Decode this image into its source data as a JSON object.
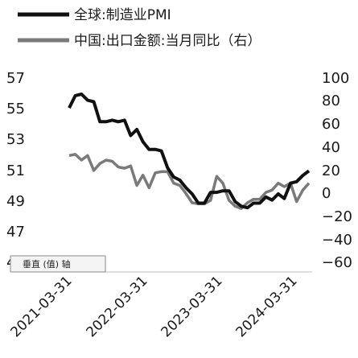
{
  "chart_data": {
    "type": "line",
    "legend": {
      "placement": "top-left"
    },
    "y_left": {
      "ticks": [
        "57",
        "55",
        "53",
        "51",
        "49",
        "47",
        "45"
      ],
      "lim": [
        45,
        57
      ]
    },
    "y_right": {
      "ticks": [
        "100",
        "80",
        "60",
        "40",
        "20",
        "0",
        "−20",
        "−40",
        "−60"
      ],
      "lim": [
        -60,
        100
      ]
    },
    "x_ticks": [
      "2021-03-31",
      "2022-03-31",
      "2023-03-31",
      "2024-03-31"
    ],
    "x": [
      "2021-03",
      "2021-04",
      "2021-05",
      "2021-06",
      "2021-07",
      "2021-08",
      "2021-09",
      "2021-10",
      "2021-11",
      "2021-12",
      "2022-01",
      "2022-02",
      "2022-03",
      "2022-04",
      "2022-05",
      "2022-06",
      "2022-07",
      "2022-08",
      "2022-09",
      "2022-10",
      "2022-11",
      "2022-12",
      "2023-01",
      "2023-02",
      "2023-03",
      "2023-04",
      "2023-05",
      "2023-06",
      "2023-07",
      "2023-08",
      "2023-09",
      "2023-10",
      "2023-11",
      "2023-12",
      "2024-01",
      "2024-02",
      "2024-03",
      "2024-04",
      "2024-05",
      "2024-06"
    ],
    "series": [
      {
        "name": "全球:制造业PMI",
        "axis": "left",
        "color": "#111111",
        "values": [
          55.0,
          55.8,
          55.9,
          55.5,
          55.4,
          54.1,
          54.1,
          54.2,
          54.1,
          54.2,
          53.2,
          53.6,
          52.8,
          52.3,
          52.3,
          52.2,
          51.1,
          50.5,
          50.3,
          49.8,
          49.4,
          48.8,
          48.8,
          49.5,
          49.5,
          49.6,
          49.6,
          48.9,
          48.6,
          48.5,
          48.8,
          48.8,
          49.2,
          49.0,
          49.4,
          49.1,
          50.1,
          50.2,
          50.6,
          50.9
        ]
      },
      {
        "name": "中国:出口金额:当月同比（右）",
        "axis": "right",
        "color": "#7a7a7a",
        "values": [
          32,
          33,
          28,
          32,
          19,
          25,
          28,
          27,
          22,
          21,
          23,
          6,
          15,
          4,
          17,
          18,
          18,
          8,
          6,
          -1,
          -9,
          -10,
          -10,
          -7,
          14,
          8,
          -7,
          -12,
          -14,
          -9,
          -6,
          -6,
          0,
          2,
          8,
          5,
          8,
          -8,
          2,
          8
        ]
      }
    ]
  },
  "tooltip": {
    "text": "垂直 (值) 轴"
  }
}
